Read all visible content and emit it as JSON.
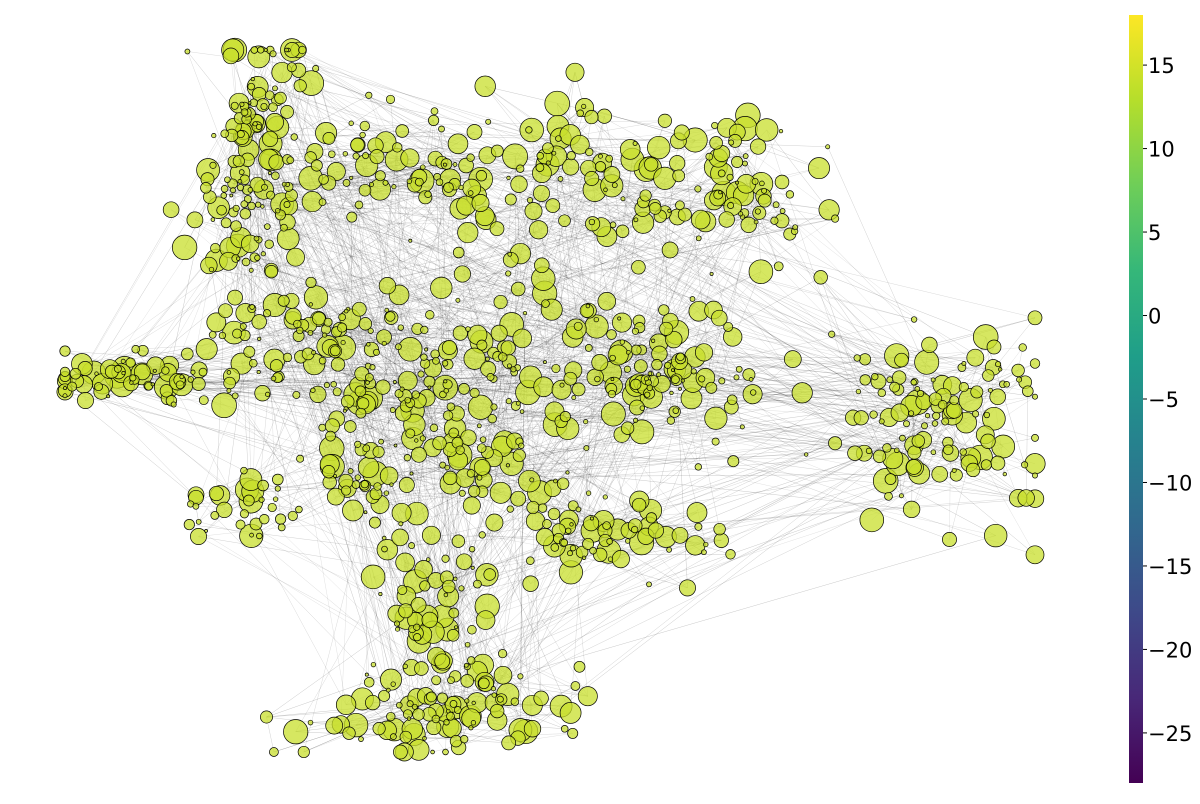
{
  "chart_data": {
    "type": "scatter",
    "title": "",
    "xlabel": "",
    "ylabel": "",
    "axes_visible": false,
    "grid": false,
    "legend": "none",
    "edges": {
      "color": "#000000",
      "visible": true
    },
    "nodes": {
      "color_value_approx": 16,
      "fill": "#c8df2c",
      "stroke": "#000000",
      "opacity": 0.75
    },
    "colorbar": {
      "colormap": "viridis",
      "position": "right",
      "range": [
        -28,
        18
      ],
      "ticks": [
        15,
        10,
        5,
        0,
        -5,
        -10,
        -15,
        -20,
        -25
      ],
      "tick_labels": [
        "15",
        "10",
        "5",
        "0",
        "−5",
        "−10",
        "−15",
        "−20",
        "−25"
      ],
      "stops": [
        "#440154",
        "#482878",
        "#3e4989",
        "#31688e",
        "#26828e",
        "#1f9e89",
        "#35b779",
        "#6ece58",
        "#b5de2b",
        "#fde725"
      ]
    }
  }
}
